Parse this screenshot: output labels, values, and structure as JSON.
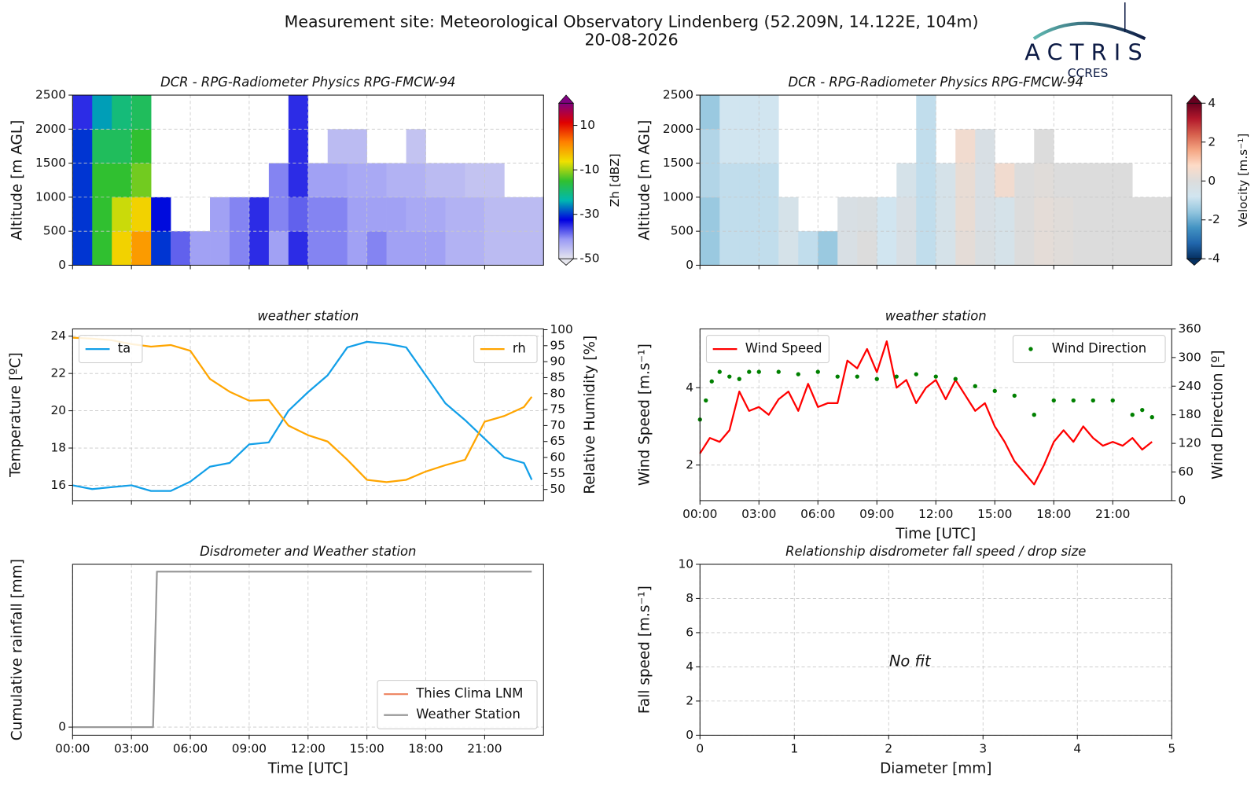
{
  "header": {
    "title": "Measurement site: Meteorological Observatory Lindenberg (52.209N, 14.122E, 104m)",
    "date": "20-08-2026",
    "logo": "ACTRIS",
    "logo_sub": "CCRES"
  },
  "chart_data": [
    {
      "type": "heatmap",
      "title": "DCR - RPG-Radiometer Physics RPG-FMCW-94",
      "ylabel": "Altitude [m AGL]",
      "cbar_label": "Zh [dBZ]",
      "xlim": [
        0,
        24
      ],
      "ylim": [
        0,
        2500
      ],
      "xticks": [
        0,
        3,
        6,
        9,
        12,
        15,
        18,
        21
      ],
      "xticklabels": false,
      "yticks": [
        0,
        500,
        1000,
        1500,
        2000,
        2500
      ],
      "grid": true,
      "xbins": [
        0,
        1,
        2,
        3,
        4,
        5,
        6,
        7,
        8,
        9,
        10,
        11,
        12,
        13,
        14,
        15,
        16,
        17,
        18,
        19,
        20,
        21,
        22,
        23,
        24
      ],
      "ybins": [
        0,
        500,
        1000,
        1500,
        2000,
        2500
      ],
      "z": [
        [
          -30,
          -15,
          -5,
          0,
          -30,
          -38,
          -42,
          -42,
          -40,
          -35,
          -42,
          -35,
          -40,
          -40,
          -42,
          -40,
          -42,
          -42,
          -42,
          -44,
          -44,
          -45,
          -45,
          -45
        ],
        [
          -30,
          -15,
          -8,
          -5,
          -32,
          null,
          null,
          -42,
          -40,
          -35,
          -40,
          -38,
          -40,
          -40,
          -42,
          -42,
          -42,
          -43,
          -43,
          -44,
          -44,
          -45,
          -45,
          -45
        ],
        [
          -30,
          -15,
          -15,
          -12,
          null,
          null,
          null,
          null,
          null,
          null,
          -40,
          -35,
          -42,
          -42,
          -43,
          -43,
          -44,
          -44,
          -45,
          -45,
          -46,
          -46,
          null,
          null
        ],
        [
          -30,
          -18,
          -18,
          -15,
          null,
          null,
          null,
          null,
          null,
          null,
          null,
          -35,
          null,
          -45,
          -45,
          null,
          null,
          -46,
          null,
          null,
          null,
          null,
          null,
          null
        ],
        [
          -35,
          -25,
          -20,
          -18,
          null,
          null,
          null,
          null,
          null,
          null,
          null,
          -35,
          null,
          null,
          null,
          null,
          null,
          null,
          null,
          null,
          null,
          null,
          null,
          null
        ]
      ],
      "clim": [
        -50,
        20
      ],
      "cbar_ticks": [
        -50,
        -30,
        -10,
        10
      ],
      "colormap": [
        "#e6e6ee",
        "#9a9af5",
        "#0000e0",
        "#00b8b0",
        "#30c030",
        "#f0e000",
        "#ff8000",
        "#e00000",
        "#800080"
      ]
    },
    {
      "type": "heatmap",
      "title": "DCR - RPG-Radiometer Physics RPG-FMCW-94",
      "ylabel": "Altitude [m AGL]",
      "cbar_label": "Velocity [m.s⁻¹]",
      "xlim": [
        0,
        24
      ],
      "ylim": [
        0,
        2500
      ],
      "xticks": [
        0,
        3,
        6,
        9,
        12,
        15,
        18,
        21
      ],
      "xticklabels": false,
      "yticks": [
        0,
        500,
        1000,
        1500,
        2000,
        2500
      ],
      "grid": true,
      "xbins": [
        0,
        1,
        2,
        3,
        4,
        5,
        6,
        7,
        8,
        9,
        10,
        11,
        12,
        13,
        14,
        15,
        16,
        17,
        18,
        19,
        20,
        21,
        22,
        23,
        24
      ],
      "ybins": [
        0,
        500,
        1000,
        1500,
        2000,
        2500
      ],
      "z": [
        [
          -1.5,
          -1,
          -1,
          -1,
          -0.5,
          -1,
          -1.5,
          -0.3,
          0,
          -0.8,
          -0.3,
          -1,
          -0.5,
          0.2,
          -0.2,
          -0.5,
          0,
          0.2,
          0.1,
          0,
          0,
          0,
          0,
          0
        ],
        [
          -1.5,
          -1,
          -1,
          -1,
          -0.5,
          null,
          null,
          -0.3,
          -0.2,
          -0.8,
          -0.3,
          -1,
          -0.5,
          0.3,
          -0.3,
          -0.5,
          0,
          0.2,
          0.1,
          0,
          0,
          0,
          0,
          0
        ],
        [
          -1.2,
          -1,
          -1,
          -1,
          null,
          null,
          null,
          null,
          null,
          null,
          -0.5,
          -1,
          -0.5,
          0.3,
          -0.3,
          0.5,
          0,
          0.1,
          0,
          0,
          0,
          0,
          null,
          null
        ],
        [
          -1.2,
          -0.8,
          -0.8,
          -0.8,
          null,
          null,
          null,
          null,
          null,
          null,
          null,
          -1,
          null,
          0.5,
          -0.3,
          null,
          null,
          0,
          null,
          null,
          null,
          null,
          null,
          null
        ],
        [
          -1.5,
          -0.8,
          -0.8,
          -0.8,
          null,
          null,
          null,
          null,
          null,
          null,
          null,
          -1,
          null,
          null,
          null,
          null,
          null,
          null,
          null,
          null,
          null,
          null,
          null,
          null
        ]
      ],
      "clim": [
        -4,
        4
      ],
      "cbar_ticks": [
        -4,
        -2,
        0,
        2,
        4
      ],
      "colormap": [
        "#053061",
        "#2166ac",
        "#4393c3",
        "#92c5de",
        "#d1e5f0",
        "#dcdcdc",
        "#fddbc7",
        "#f4a582",
        "#d6604d",
        "#b2182b",
        "#67001f"
      ]
    },
    {
      "type": "line",
      "title": "weather station",
      "ylabel": "Temperature [ºC]",
      "y2label": "Relative Humidity [%]",
      "xlim": [
        0,
        24
      ],
      "ylim": [
        15.18,
        24.39
      ],
      "y2lim": [
        46.5,
        100.25
      ],
      "xticks": [
        0,
        3,
        6,
        9,
        12,
        15,
        18,
        21
      ],
      "xticklabels": false,
      "yticks": [
        16,
        18,
        20,
        22,
        24
      ],
      "y2ticks": [
        50,
        55,
        60,
        65,
        70,
        75,
        80,
        85,
        90,
        95,
        100
      ],
      "grid": true,
      "x": [
        0,
        1,
        2,
        3,
        4,
        5,
        6,
        7,
        8,
        9,
        10,
        11,
        12,
        13,
        14,
        15,
        16,
        17,
        18,
        19,
        20,
        21,
        22,
        23,
        23.4
      ],
      "series": [
        {
          "name": "ta",
          "color": "#129fe8",
          "legend": "upper left",
          "mark": "line",
          "values": [
            16.0,
            15.8,
            15.9,
            16.0,
            15.7,
            15.7,
            16.2,
            17.0,
            17.2,
            18.2,
            18.3,
            20.0,
            21.0,
            21.9,
            23.4,
            23.7,
            23.6,
            23.4,
            21.9,
            20.4,
            19.5,
            18.5,
            17.5,
            17.2,
            16.3
          ]
        },
        {
          "name": "rh",
          "color": "#ffa500",
          "legend": "upper right",
          "mark": "line",
          "axis": "y2",
          "values": [
            97.5,
            97.2,
            96.7,
            95.5,
            94.7,
            95.2,
            93.4,
            84.6,
            80.6,
            77.8,
            78,
            70,
            67,
            65,
            59.3,
            53,
            52.3,
            53,
            55.6,
            57.6,
            59.3,
            71.2,
            73,
            75.8,
            79
          ]
        }
      ]
    },
    {
      "type": "line",
      "title": "weather station",
      "ylabel": "Wind Speed [m.s⁻¹]",
      "y2label": "Wind Direction [º]",
      "xlabel": "Time [UTC]",
      "xlim": [
        0,
        24
      ],
      "ylim": [
        1.08,
        5.52
      ],
      "y2lim": [
        0,
        360
      ],
      "xticks": [
        {
          "value": 0,
          "label": "00:00"
        },
        {
          "value": 3,
          "label": "03:00"
        },
        {
          "value": 6,
          "label": "06:00"
        },
        {
          "value": 9,
          "label": "09:00"
        },
        {
          "value": 12,
          "label": "12:00"
        },
        {
          "value": 15,
          "label": "15:00"
        },
        {
          "value": 18,
          "label": "18:00"
        },
        {
          "value": 21,
          "label": "21:00"
        }
      ],
      "yticks": [
        2,
        4
      ],
      "y2ticks": [
        0,
        60,
        120,
        180,
        240,
        300,
        360
      ],
      "grid": true,
      "series": [
        {
          "name": "Wind Speed",
          "color": "#ff0000",
          "legend": "upper left",
          "mark": "line",
          "x": [
            0,
            0.5,
            1,
            1.5,
            2,
            2.5,
            3,
            3.5,
            4,
            4.5,
            5,
            5.5,
            6,
            6.5,
            7,
            7.5,
            8,
            8.5,
            9,
            9.5,
            10,
            10.5,
            11,
            11.5,
            12,
            12.5,
            13,
            13.5,
            14,
            14.5,
            15,
            15.5,
            16,
            16.5,
            17,
            17.5,
            18,
            18.5,
            19,
            19.5,
            20,
            20.5,
            21,
            21.5,
            22,
            22.5,
            23
          ],
          "values": [
            2.3,
            2.7,
            2.6,
            2.9,
            3.9,
            3.4,
            3.5,
            3.3,
            3.7,
            3.9,
            3.4,
            4.1,
            3.5,
            3.6,
            3.6,
            4.7,
            4.5,
            5.0,
            4.4,
            5.2,
            4.0,
            4.2,
            3.6,
            4.0,
            4.2,
            3.7,
            4.2,
            3.8,
            3.4,
            3.6,
            3.0,
            2.6,
            2.1,
            1.8,
            1.5,
            2.0,
            2.6,
            2.9,
            2.6,
            3.0,
            2.7,
            2.5,
            2.6,
            2.5,
            2.7,
            2.4,
            2.6
          ]
        },
        {
          "name": "Wind Direction",
          "color": "#008000",
          "legend": "upper right",
          "mark": "dot",
          "axis": "y2",
          "x": [
            0,
            0.3,
            0.6,
            1,
            1.5,
            2,
            2.5,
            3,
            4,
            5,
            6,
            7,
            8,
            9,
            10,
            11,
            12,
            13,
            14,
            15,
            16,
            17,
            18,
            19,
            20,
            21,
            22,
            22.5,
            23
          ],
          "values": [
            170,
            210,
            250,
            270,
            260,
            255,
            270,
            270,
            270,
            265,
            270,
            260,
            260,
            255,
            260,
            265,
            260,
            255,
            240,
            230,
            220,
            180,
            210,
            210,
            210,
            210,
            180,
            190,
            175
          ]
        }
      ]
    },
    {
      "type": "line",
      "title": "Disdrometer and Weather station",
      "ylabel": "Cumulative rainfall [mm]",
      "xlabel": "Time [UTC]",
      "xlim": [
        0,
        24
      ],
      "ylim": [
        -0.052,
        1.047
      ],
      "xticks": [
        {
          "value": 0,
          "label": "00:00"
        },
        {
          "value": 3,
          "label": "03:00"
        },
        {
          "value": 6,
          "label": "06:00"
        },
        {
          "value": 9,
          "label": "09:00"
        },
        {
          "value": 12,
          "label": "12:00"
        },
        {
          "value": 15,
          "label": "15:00"
        },
        {
          "value": 18,
          "label": "18:00"
        },
        {
          "value": 21,
          "label": "21:00"
        }
      ],
      "yticks": [
        0
      ],
      "grid": true,
      "series": [
        {
          "name": "Thies Clima LNM",
          "color": "#ee8866",
          "legend": "lower right",
          "mark": "line",
          "x": [],
          "values": []
        },
        {
          "name": "Weather Station",
          "color": "#999999",
          "legend": "lower right",
          "mark": "line",
          "x": [
            0,
            4.1,
            4.3,
            23.4
          ],
          "values": [
            0,
            0,
            1,
            1
          ]
        }
      ]
    },
    {
      "type": "scatter",
      "title": "Relationship disdrometer fall speed / drop size",
      "ylabel": "Fall speed [m.s⁻¹]",
      "xlabel": "Diameter [mm]",
      "xlim": [
        0,
        5
      ],
      "ylim": [
        0,
        10
      ],
      "xticks": [
        0,
        1,
        2,
        3,
        4,
        5
      ],
      "yticks": [
        0,
        2,
        4,
        6,
        8,
        10
      ],
      "grid": true,
      "annotation": "No fit",
      "series": []
    }
  ]
}
